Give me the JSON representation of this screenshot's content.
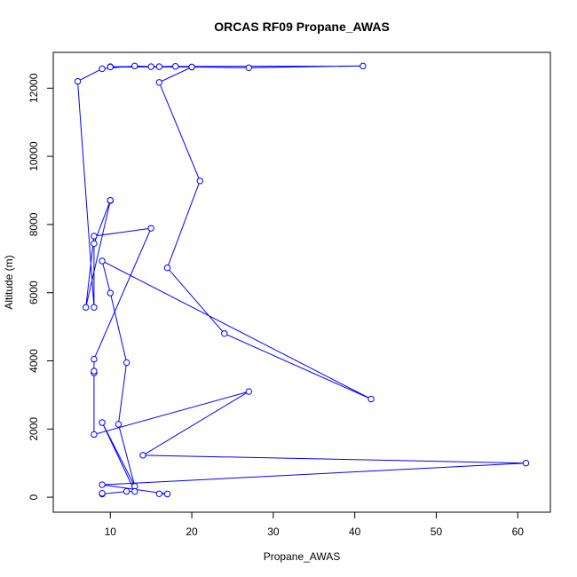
{
  "chart_data": {
    "type": "line",
    "title": "ORCAS RF09 Propane_AWAS",
    "xlabel": "Propane_AWAS",
    "ylabel": "Altitude (m)",
    "xlim": [
      3.0,
      64.0
    ],
    "ylim": [
      -440,
      13050
    ],
    "xticks": [
      10,
      20,
      30,
      40,
      50,
      60
    ],
    "yticks": [
      0,
      2000,
      4000,
      6000,
      8000,
      10000,
      12000
    ],
    "xtick_labels": [
      "10",
      "20",
      "30",
      "40",
      "50",
      "60"
    ],
    "ytick_labels": [
      "0",
      "2000",
      "4000",
      "6000",
      "8000",
      "10000",
      "12000"
    ],
    "markers": "open circles",
    "grid": false,
    "legend": "none",
    "series_color": "#0000ff",
    "series": [
      {
        "x": [
          16,
          17,
          9,
          61,
          14,
          27,
          8,
          8,
          8,
          8,
          15,
          8,
          7,
          10,
          10,
          8,
          8,
          6,
          9,
          13,
          15,
          16,
          18,
          20,
          27,
          41,
          10,
          10,
          20,
          16,
          21,
          17,
          24,
          42,
          9,
          10,
          12,
          11,
          13,
          9,
          13,
          12,
          9,
          9
        ],
        "y": [
          100,
          95,
          365,
          1000,
          1230,
          3100,
          1840,
          3650,
          3700,
          4050,
          7890,
          7660,
          5570,
          8700,
          8710,
          7440,
          5570,
          12200,
          12570,
          12650,
          12630,
          12630,
          12640,
          12620,
          12600,
          12650,
          12630,
          12620,
          12620,
          12170,
          9280,
          6730,
          4800,
          2880,
          6930,
          5990,
          3950,
          2140,
          320,
          2190,
          170,
          170,
          95,
          115
        ]
      }
    ]
  }
}
